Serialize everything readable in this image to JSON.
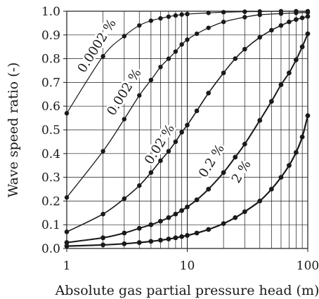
{
  "chart_data": {
    "type": "scatter",
    "title": "",
    "xlabel": "Absolute gas partial pressure head (m)",
    "ylabel": "Wave speed ratio (-)",
    "x_scale": "log",
    "xlim": [
      1,
      100
    ],
    "ylim": [
      0,
      1
    ],
    "x_ticks": [
      "1",
      "10",
      "100"
    ],
    "y_ticks": [
      "0.0",
      "0.1",
      "0.2",
      "0.3",
      "0.4",
      "0.5",
      "0.6",
      "0.7",
      "0.8",
      "0.9",
      "1.0"
    ],
    "grid": true,
    "legend": "none",
    "series": [
      {
        "name": "0.0002 %",
        "label_position": {
          "x": 1.9,
          "y": 0.845
        },
        "points": [
          [
            1,
            0.57
          ],
          [
            2,
            0.81
          ],
          [
            3,
            0.895
          ],
          [
            4,
            0.94
          ],
          [
            5,
            0.96
          ],
          [
            6,
            0.97
          ],
          [
            7,
            0.977
          ],
          [
            8,
            0.982
          ],
          [
            9,
            0.986
          ],
          [
            10,
            0.988
          ],
          [
            15,
            0.993
          ],
          [
            20,
            0.996
          ],
          [
            30,
            0.998
          ],
          [
            40,
            0.999
          ],
          [
            60,
            1.0
          ],
          [
            80,
            1.0
          ],
          [
            100,
            1.0
          ]
        ]
      },
      {
        "name": "0.002 %",
        "label_position": {
          "x": 3.2,
          "y": 0.65
        },
        "points": [
          [
            1,
            0.215
          ],
          [
            2,
            0.41
          ],
          [
            3,
            0.545
          ],
          [
            4,
            0.645
          ],
          [
            5,
            0.71
          ],
          [
            6,
            0.765
          ],
          [
            7,
            0.8
          ],
          [
            8,
            0.83
          ],
          [
            9,
            0.86
          ],
          [
            10,
            0.88
          ],
          [
            12,
            0.905
          ],
          [
            15,
            0.93
          ],
          [
            20,
            0.955
          ],
          [
            30,
            0.975
          ],
          [
            40,
            0.985
          ],
          [
            60,
            0.99
          ],
          [
            80,
            0.993
          ],
          [
            100,
            0.995
          ]
        ]
      },
      {
        "name": "0.02 %",
        "label_position": {
          "x": 6.3,
          "y": 0.43
        },
        "points": [
          [
            1,
            0.07
          ],
          [
            2,
            0.145
          ],
          [
            3,
            0.21
          ],
          [
            4,
            0.265
          ],
          [
            5,
            0.32
          ],
          [
            6,
            0.37
          ],
          [
            7,
            0.41
          ],
          [
            8,
            0.45
          ],
          [
            9,
            0.49
          ],
          [
            10,
            0.52
          ],
          [
            12,
            0.58
          ],
          [
            15,
            0.655
          ],
          [
            20,
            0.74
          ],
          [
            25,
            0.8
          ],
          [
            30,
            0.84
          ],
          [
            40,
            0.89
          ],
          [
            50,
            0.92
          ],
          [
            60,
            0.94
          ],
          [
            70,
            0.955
          ],
          [
            80,
            0.965
          ],
          [
            90,
            0.972
          ],
          [
            100,
            0.978
          ]
        ]
      },
      {
        "name": "0.2 %",
        "label_position": {
          "x": 17,
          "y": 0.36
        },
        "points": [
          [
            1,
            0.025
          ],
          [
            2,
            0.045
          ],
          [
            3,
            0.065
          ],
          [
            4,
            0.085
          ],
          [
            5,
            0.1
          ],
          [
            6,
            0.115
          ],
          [
            7,
            0.13
          ],
          [
            8,
            0.145
          ],
          [
            9,
            0.16
          ],
          [
            10,
            0.175
          ],
          [
            12,
            0.205
          ],
          [
            15,
            0.25
          ],
          [
            20,
            0.32
          ],
          [
            25,
            0.385
          ],
          [
            30,
            0.44
          ],
          [
            40,
            0.54
          ],
          [
            50,
            0.62
          ],
          [
            60,
            0.69
          ],
          [
            70,
            0.74
          ],
          [
            80,
            0.795
          ],
          [
            90,
            0.85
          ],
          [
            100,
            0.905
          ]
        ]
      },
      {
        "name": "2 %",
        "label_position": {
          "x": 30,
          "y": 0.315
        },
        "points": [
          [
            1,
            0.01
          ],
          [
            2,
            0.015
          ],
          [
            3,
            0.02
          ],
          [
            4,
            0.025
          ],
          [
            5,
            0.03
          ],
          [
            6,
            0.035
          ],
          [
            7,
            0.04
          ],
          [
            8,
            0.045
          ],
          [
            9,
            0.05
          ],
          [
            10,
            0.055
          ],
          [
            12,
            0.065
          ],
          [
            15,
            0.08
          ],
          [
            20,
            0.105
          ],
          [
            25,
            0.13
          ],
          [
            30,
            0.155
          ],
          [
            40,
            0.2
          ],
          [
            50,
            0.25
          ],
          [
            60,
            0.3
          ],
          [
            70,
            0.35
          ],
          [
            80,
            0.405
          ],
          [
            90,
            0.47
          ],
          [
            100,
            0.56
          ]
        ]
      }
    ]
  }
}
